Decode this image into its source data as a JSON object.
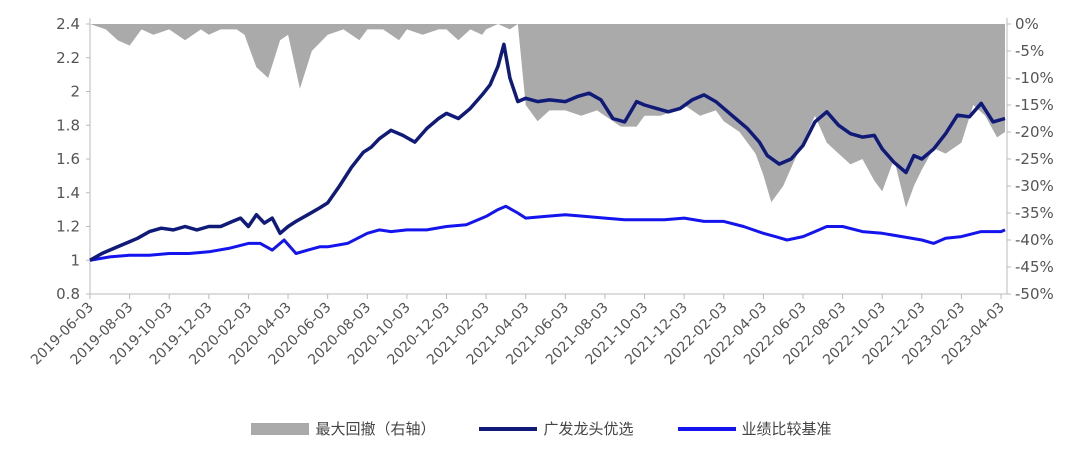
{
  "chart_data": {
    "type": "line+area",
    "colors": {
      "drawdown": "#aaaaaa",
      "fund": "#101a78",
      "benchmark": "#1414ee"
    },
    "y_left": {
      "ticks": [
        "0.8",
        "1",
        "1.2",
        "1.4",
        "1.6",
        "1.8",
        "2",
        "2.2",
        "2.4"
      ],
      "min": 0.8,
      "max": 2.4
    },
    "y_right": {
      "ticks": [
        "0%",
        "-5%",
        "-10%",
        "-15%",
        "-20%",
        "-25%",
        "-30%",
        "-35%",
        "-40%",
        "-45%",
        "-50%"
      ],
      "min": -50,
      "max": 0
    },
    "x_ticks": [
      "2019-06-03",
      "2019-08-03",
      "2019-10-03",
      "2019-12-03",
      "2020-02-03",
      "2020-04-03",
      "2020-06-03",
      "2020-08-03",
      "2020-10-03",
      "2020-12-03",
      "2021-02-03",
      "2021-04-03",
      "2021-06-03",
      "2021-08-03",
      "2021-10-03",
      "2021-12-03",
      "2022-02-03",
      "2022-04-03",
      "2022-06-03",
      "2022-08-03",
      "2022-10-03",
      "2022-12-03",
      "2023-02-03",
      "2023-04-03"
    ],
    "x_start_index": 0,
    "x_end_index": 23.1,
    "series": [
      {
        "name": "最大回撤（右轴）",
        "axis": "right",
        "type": "area",
        "x": [
          0,
          0.4,
          0.7,
          1,
          1.3,
          1.6,
          2,
          2.4,
          2.8,
          3,
          3.3,
          3.7,
          3.9,
          4,
          4.2,
          4.5,
          4.8,
          5,
          5.3,
          5.6,
          6,
          6.4,
          6.8,
          7,
          7.4,
          7.8,
          8,
          8.4,
          8.8,
          9,
          9.3,
          9.6,
          9.9,
          10,
          10.3,
          10.6,
          10.8,
          11,
          11.3,
          11.6,
          12,
          12.4,
          12.8,
          13,
          13.4,
          13.8,
          14,
          14.4,
          14.8,
          15,
          15.4,
          15.8,
          16,
          16.4,
          16.8,
          17,
          17.2,
          17.5,
          17.8,
          18,
          18.3,
          18.6,
          18.9,
          19.2,
          19.5,
          19.8,
          20,
          20.3,
          20.6,
          20.8,
          21,
          21.3,
          21.6,
          22,
          22.3,
          22.6,
          22.9,
          23.1
        ],
        "values": [
          0,
          -1,
          -3,
          -4,
          -1,
          -2,
          -1,
          -3,
          -1,
          -2,
          -1,
          -1,
          -2,
          -4,
          -8,
          -10,
          -3,
          -2,
          -12,
          -5,
          -2,
          -1,
          -3,
          -1,
          -1,
          -3,
          -1,
          -2,
          -1,
          -1,
          -3,
          -1,
          -2,
          -1,
          0,
          -1,
          0,
          -15,
          -18,
          -16,
          -16,
          -17,
          -16,
          -17,
          -19,
          -19,
          -17,
          -17,
          -16,
          -15,
          -17,
          -16,
          -18,
          -20,
          -24,
          -28,
          -33,
          -30,
          -25,
          -22,
          -17,
          -22,
          -24,
          -26,
          -25,
          -29,
          -31,
          -25,
          -34,
          -30,
          -27,
          -23,
          -24,
          -22,
          -15,
          -17,
          -21,
          -20
        ]
      },
      {
        "name": "广发龙头优选",
        "axis": "left",
        "type": "line",
        "x": [
          0,
          0.3,
          0.6,
          0.9,
          1.2,
          1.5,
          1.8,
          2.1,
          2.4,
          2.7,
          3,
          3.3,
          3.6,
          3.8,
          4,
          4.2,
          4.4,
          4.6,
          4.8,
          5,
          5.2,
          5.5,
          5.8,
          6,
          6.3,
          6.6,
          6.9,
          7.1,
          7.3,
          7.6,
          7.9,
          8.2,
          8.5,
          8.8,
          9,
          9.3,
          9.6,
          9.9,
          10.1,
          10.3,
          10.45,
          10.6,
          10.8,
          11,
          11.3,
          11.6,
          12,
          12.3,
          12.6,
          12.9,
          13.2,
          13.5,
          13.8,
          14,
          14.3,
          14.6,
          14.9,
          15.2,
          15.5,
          15.8,
          16,
          16.3,
          16.6,
          16.9,
          17.1,
          17.4,
          17.7,
          18,
          18.3,
          18.6,
          18.9,
          19.2,
          19.5,
          19.8,
          20,
          20.3,
          20.6,
          20.8,
          21,
          21.3,
          21.6,
          21.9,
          22.2,
          22.5,
          22.8,
          23.1
        ],
        "values": [
          1,
          1.04,
          1.07,
          1.1,
          1.13,
          1.17,
          1.19,
          1.18,
          1.2,
          1.18,
          1.2,
          1.2,
          1.23,
          1.25,
          1.2,
          1.27,
          1.22,
          1.25,
          1.16,
          1.2,
          1.23,
          1.27,
          1.31,
          1.34,
          1.44,
          1.55,
          1.64,
          1.67,
          1.72,
          1.77,
          1.74,
          1.7,
          1.78,
          1.84,
          1.87,
          1.84,
          1.9,
          1.98,
          2.04,
          2.15,
          2.28,
          2.08,
          1.94,
          1.96,
          1.94,
          1.95,
          1.94,
          1.97,
          1.99,
          1.95,
          1.84,
          1.82,
          1.94,
          1.92,
          1.9,
          1.88,
          1.9,
          1.95,
          1.98,
          1.94,
          1.9,
          1.84,
          1.78,
          1.7,
          1.62,
          1.57,
          1.6,
          1.68,
          1.82,
          1.88,
          1.8,
          1.75,
          1.73,
          1.74,
          1.66,
          1.58,
          1.52,
          1.62,
          1.6,
          1.66,
          1.75,
          1.86,
          1.85,
          1.93,
          1.82,
          1.84
        ]
      },
      {
        "name": "业绩比较基准",
        "axis": "left",
        "type": "line",
        "x": [
          0,
          0.5,
          1,
          1.5,
          2,
          2.5,
          3,
          3.5,
          4,
          4.3,
          4.6,
          4.9,
          5.2,
          5.5,
          5.8,
          6,
          6.5,
          7,
          7.3,
          7.6,
          8,
          8.5,
          9,
          9.5,
          10,
          10.3,
          10.5,
          10.8,
          11,
          11.5,
          12,
          12.5,
          13,
          13.5,
          14,
          14.5,
          15,
          15.5,
          16,
          16.5,
          17,
          17.3,
          17.6,
          18,
          18.3,
          18.6,
          19,
          19.5,
          20,
          20.5,
          21,
          21.3,
          21.6,
          22,
          22.5,
          23,
          23.1
        ],
        "values": [
          1,
          1.02,
          1.03,
          1.03,
          1.04,
          1.04,
          1.05,
          1.07,
          1.1,
          1.1,
          1.06,
          1.12,
          1.04,
          1.06,
          1.08,
          1.08,
          1.1,
          1.16,
          1.18,
          1.17,
          1.18,
          1.18,
          1.2,
          1.21,
          1.26,
          1.3,
          1.32,
          1.28,
          1.25,
          1.26,
          1.27,
          1.26,
          1.25,
          1.24,
          1.24,
          1.24,
          1.25,
          1.23,
          1.23,
          1.2,
          1.16,
          1.14,
          1.12,
          1.14,
          1.17,
          1.2,
          1.2,
          1.17,
          1.16,
          1.14,
          1.12,
          1.1,
          1.13,
          1.14,
          1.17,
          1.17,
          1.18
        ]
      }
    ]
  },
  "legend": {
    "drawdown": "最大回撤（右轴）",
    "fund": "广发龙头优选",
    "benchmark": "业绩比较基准"
  }
}
